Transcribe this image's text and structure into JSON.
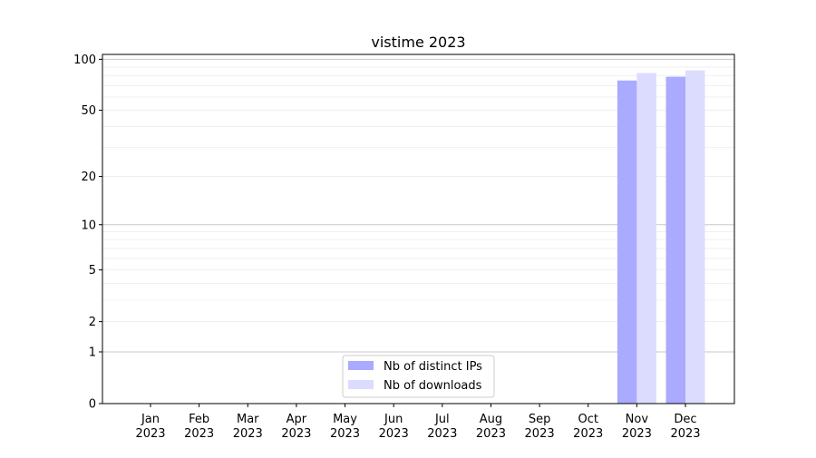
{
  "chart_data": {
    "type": "bar",
    "title": "vistime 2023",
    "xlabel": "",
    "ylabel": "",
    "categories": [
      "Jan\n2023",
      "Feb\n2023",
      "Mar\n2023",
      "Apr\n2023",
      "May\n2023",
      "Jun\n2023",
      "Jul\n2023",
      "Aug\n2023",
      "Sep\n2023",
      "Oct\n2023",
      "Nov\n2023",
      "Dec\n2023"
    ],
    "series": [
      {
        "name": "Nb of distinct IPs",
        "color": "#aaaaff",
        "values": [
          0,
          0,
          0,
          0,
          0,
          0,
          0,
          0,
          0,
          0,
          75,
          79
        ]
      },
      {
        "name": "Nb of downloads",
        "color": "#dcdcff",
        "values": [
          0,
          0,
          0,
          0,
          0,
          0,
          0,
          0,
          0,
          0,
          83,
          86
        ]
      }
    ],
    "yscale": "symlog",
    "ylim": [
      0,
      105
    ],
    "yticks": [
      0,
      1,
      2,
      5,
      10,
      20,
      50,
      100
    ],
    "grid": true,
    "legend": "bottom-center"
  }
}
